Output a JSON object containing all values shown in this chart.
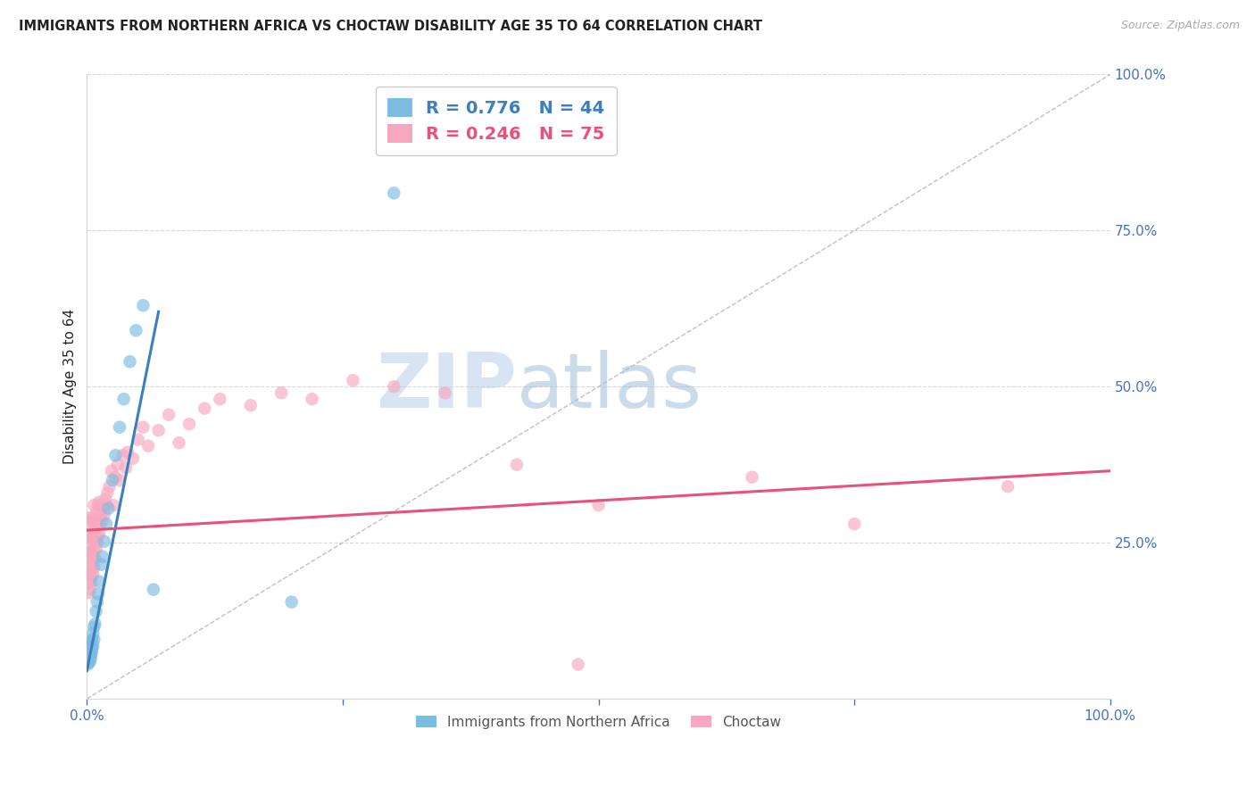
{
  "title": "IMMIGRANTS FROM NORTHERN AFRICA VS CHOCTAW DISABILITY AGE 35 TO 64 CORRELATION CHART",
  "source": "Source: ZipAtlas.com",
  "ylabel": "Disability Age 35 to 64",
  "xlim": [
    0,
    1.0
  ],
  "ylim": [
    0,
    1.0
  ],
  "blue_color": "#7bbcdf",
  "pink_color": "#f8a8be",
  "blue_line_color": "#3a7fc1",
  "pink_line_color": "#e8527a",
  "legend_R_blue": "R = 0.776",
  "legend_N_blue": "N = 44",
  "legend_R_pink": "R = 0.246",
  "legend_N_pink": "N = 75",
  "blue_scatter_x": [
    0.001,
    0.001,
    0.001,
    0.001,
    0.002,
    0.002,
    0.002,
    0.002,
    0.003,
    0.003,
    0.003,
    0.003,
    0.003,
    0.004,
    0.004,
    0.004,
    0.004,
    0.005,
    0.005,
    0.005,
    0.006,
    0.006,
    0.007,
    0.007,
    0.008,
    0.009,
    0.01,
    0.011,
    0.012,
    0.014,
    0.015,
    0.017,
    0.019,
    0.021,
    0.025,
    0.028,
    0.032,
    0.036,
    0.042,
    0.048,
    0.055,
    0.065,
    0.2,
    0.3
  ],
  "blue_scatter_y": [
    0.055,
    0.06,
    0.065,
    0.07,
    0.058,
    0.062,
    0.068,
    0.075,
    0.06,
    0.068,
    0.072,
    0.08,
    0.085,
    0.065,
    0.072,
    0.078,
    0.09,
    0.075,
    0.082,
    0.095,
    0.085,
    0.105,
    0.095,
    0.115,
    0.12,
    0.14,
    0.155,
    0.168,
    0.188,
    0.215,
    0.228,
    0.252,
    0.28,
    0.305,
    0.35,
    0.39,
    0.435,
    0.48,
    0.54,
    0.59,
    0.63,
    0.175,
    0.155,
    0.81
  ],
  "pink_scatter_x": [
    0.001,
    0.001,
    0.002,
    0.002,
    0.002,
    0.003,
    0.003,
    0.003,
    0.003,
    0.003,
    0.004,
    0.004,
    0.004,
    0.004,
    0.005,
    0.005,
    0.005,
    0.005,
    0.006,
    0.006,
    0.006,
    0.006,
    0.007,
    0.007,
    0.007,
    0.007,
    0.008,
    0.008,
    0.009,
    0.009,
    0.01,
    0.01,
    0.011,
    0.011,
    0.012,
    0.012,
    0.013,
    0.014,
    0.015,
    0.016,
    0.017,
    0.018,
    0.019,
    0.02,
    0.022,
    0.024,
    0.026,
    0.028,
    0.03,
    0.032,
    0.035,
    0.038,
    0.04,
    0.045,
    0.05,
    0.055,
    0.06,
    0.07,
    0.08,
    0.09,
    0.1,
    0.115,
    0.13,
    0.16,
    0.19,
    0.22,
    0.26,
    0.3,
    0.35,
    0.42,
    0.5,
    0.65,
    0.75,
    0.9,
    0.48
  ],
  "pink_scatter_y": [
    0.185,
    0.215,
    0.17,
    0.2,
    0.23,
    0.175,
    0.205,
    0.235,
    0.26,
    0.29,
    0.185,
    0.215,
    0.245,
    0.275,
    0.195,
    0.225,
    0.255,
    0.285,
    0.2,
    0.23,
    0.26,
    0.29,
    0.21,
    0.24,
    0.27,
    0.31,
    0.225,
    0.265,
    0.24,
    0.28,
    0.25,
    0.3,
    0.26,
    0.31,
    0.265,
    0.315,
    0.28,
    0.295,
    0.285,
    0.305,
    0.295,
    0.32,
    0.31,
    0.33,
    0.34,
    0.365,
    0.31,
    0.355,
    0.375,
    0.35,
    0.39,
    0.37,
    0.395,
    0.385,
    0.415,
    0.435,
    0.405,
    0.43,
    0.455,
    0.41,
    0.44,
    0.465,
    0.48,
    0.47,
    0.49,
    0.48,
    0.51,
    0.5,
    0.49,
    0.375,
    0.31,
    0.355,
    0.28,
    0.34,
    0.055
  ],
  "blue_trend_x": [
    0.0,
    0.07
  ],
  "blue_trend_y": [
    0.045,
    0.62
  ],
  "pink_trend_x": [
    0.0,
    1.0
  ],
  "pink_trend_y": [
    0.27,
    0.365
  ],
  "diag_line_x": [
    0.0,
    1.0
  ],
  "diag_line_y": [
    0.0,
    1.0
  ],
  "watermark_text": "ZIPatlas",
  "watermark_color": "#c5d8f0",
  "background_color": "#ffffff",
  "grid_color": "#d8d8d8",
  "title_color": "#222222",
  "right_tick_color": "#4472c4",
  "bottom_tick_color": "#4472c4",
  "legend_label_blue": "Immigrants from Northern Africa",
  "legend_label_pink": "Choctaw",
  "ytick_positions": [
    0.0,
    0.25,
    0.5,
    0.75,
    1.0
  ],
  "ytick_labels_right": [
    "",
    "25.0%",
    "50.0%",
    "75.0%",
    "100.0%"
  ],
  "xtick_positions": [
    0.0,
    0.25,
    0.5,
    0.75,
    1.0
  ],
  "xtick_labels": [
    "0.0%",
    "",
    "",
    "",
    "100.0%"
  ]
}
